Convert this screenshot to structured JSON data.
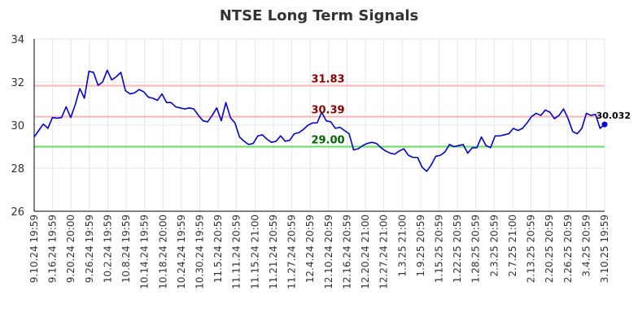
{
  "chart_data": {
    "type": "line",
    "title": "NTSE Long Term Signals",
    "xlabel": "",
    "ylabel": "",
    "ylim": [
      26,
      34
    ],
    "yticks": [
      26,
      28,
      30,
      32,
      34
    ],
    "grid": true,
    "legend": "none",
    "x_tick_labels": [
      "9.10.24 19:59",
      "9.16.24 19:59",
      "9.20.24 20:00",
      "9.26.24 19:59",
      "10.2.24 19:59",
      "10.8.24 19:59",
      "10.14.24 19:59",
      "10.18.24 20:00",
      "10.24.24 19:59",
      "10.30.24 19:59",
      "11.5.24 20:59",
      "11.11.24 20:59",
      "11.15.24 21:00",
      "11.21.24 20:59",
      "11.27.24 20:59",
      "12.4.24 20:59",
      "12.10.24 20:59",
      "12.16.24 20:59",
      "12.20.24 21:00",
      "12.27.24 21:00",
      "1.3.25 21:00",
      "1.9.25 20:59",
      "1.15.25 20:59",
      "1.22.25 20:59",
      "1.28.25 20:59",
      "2.3.25 20:59",
      "2.7.25 21:00",
      "2.13.25 20:59",
      "2.20.25 20:59",
      "2.26.25 20:59",
      "3.4.25 20:59",
      "3.10.25 19:59"
    ],
    "reference_lines": [
      {
        "value": 31.83,
        "label": "31.83",
        "color": "#ffb3b3",
        "label_color": "#8b0000"
      },
      {
        "value": 30.39,
        "label": "30.39",
        "color": "#ffb3b3",
        "label_color": "#8b0000"
      },
      {
        "value": 29.0,
        "label": "29.00",
        "color": "#66dd66",
        "label_color": "#006400"
      }
    ],
    "series": [
      {
        "color": "#0000cc",
        "values": [
          29.45,
          29.75,
          30.05,
          29.85,
          30.35,
          30.32,
          30.35,
          30.85,
          30.35,
          30.95,
          31.7,
          31.25,
          32.5,
          32.45,
          31.85,
          32.0,
          32.55,
          32.1,
          32.25,
          32.45,
          31.6,
          31.45,
          31.5,
          31.65,
          31.55,
          31.3,
          31.25,
          31.15,
          31.45,
          31.05,
          31.05,
          30.85,
          30.8,
          30.75,
          30.8,
          30.75,
          30.45,
          30.2,
          30.15,
          30.45,
          30.8,
          30.2,
          31.05,
          30.35,
          30.1,
          29.45,
          29.25,
          29.1,
          29.15,
          29.5,
          29.55,
          29.35,
          29.2,
          29.25,
          29.5,
          29.25,
          29.3,
          29.6,
          29.65,
          29.8,
          30.0,
          30.1,
          30.1,
          30.6,
          30.2,
          30.15,
          29.85,
          29.9,
          29.75,
          29.6,
          28.85,
          28.9,
          29.05,
          29.15,
          29.2,
          29.15,
          28.95,
          28.8,
          28.7,
          28.65,
          28.8,
          28.9,
          28.6,
          28.5,
          28.5,
          28.05,
          27.85,
          28.15,
          28.55,
          28.6,
          28.75,
          29.1,
          29.0,
          29.05,
          29.1,
          28.7,
          28.95,
          28.95,
          29.45,
          29.05,
          28.95,
          29.5,
          29.5,
          29.55,
          29.6,
          29.85,
          29.75,
          29.85,
          30.1,
          30.4,
          30.55,
          30.45,
          30.7,
          30.6,
          30.3,
          30.45,
          30.75,
          30.3,
          29.7,
          29.6,
          29.85,
          30.55,
          30.45,
          30.5,
          29.85,
          30.032
        ]
      }
    ],
    "end_label": "30.032"
  }
}
